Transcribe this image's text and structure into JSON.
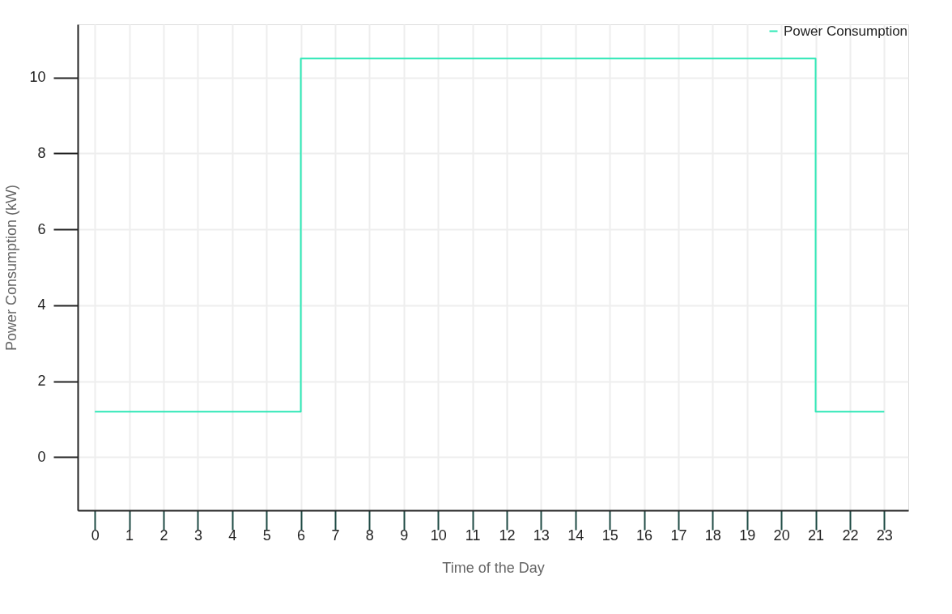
{
  "chart_data": {
    "type": "step",
    "xlabel": "Time of the Day",
    "ylabel": "Power Consumption (kW)",
    "x": [
      0,
      1,
      2,
      3,
      4,
      5,
      6,
      7,
      8,
      9,
      10,
      11,
      12,
      13,
      14,
      15,
      16,
      17,
      18,
      19,
      20,
      21,
      22,
      23
    ],
    "series": [
      {
        "name": "Power Consumption",
        "color": "#2ee8b6",
        "values": [
          1.2,
          1.2,
          1.2,
          1.2,
          1.2,
          1.2,
          10.5,
          10.5,
          10.5,
          10.5,
          10.5,
          10.5,
          10.5,
          10.5,
          10.5,
          10.5,
          10.5,
          10.5,
          10.5,
          10.5,
          10.5,
          1.2,
          1.2,
          1.2
        ]
      }
    ],
    "xlim": [
      -0.5,
      23.7
    ],
    "xticks": [
      0,
      1,
      2,
      3,
      4,
      5,
      6,
      7,
      8,
      9,
      10,
      11,
      12,
      13,
      14,
      15,
      16,
      17,
      18,
      19,
      20,
      21,
      22,
      23
    ],
    "ylim": [
      -1.4,
      11.4
    ],
    "yticks": [
      0,
      2,
      4,
      6,
      8,
      10
    ],
    "grid": true,
    "legend": "top right",
    "marker": "none",
    "line_style": "solid"
  }
}
